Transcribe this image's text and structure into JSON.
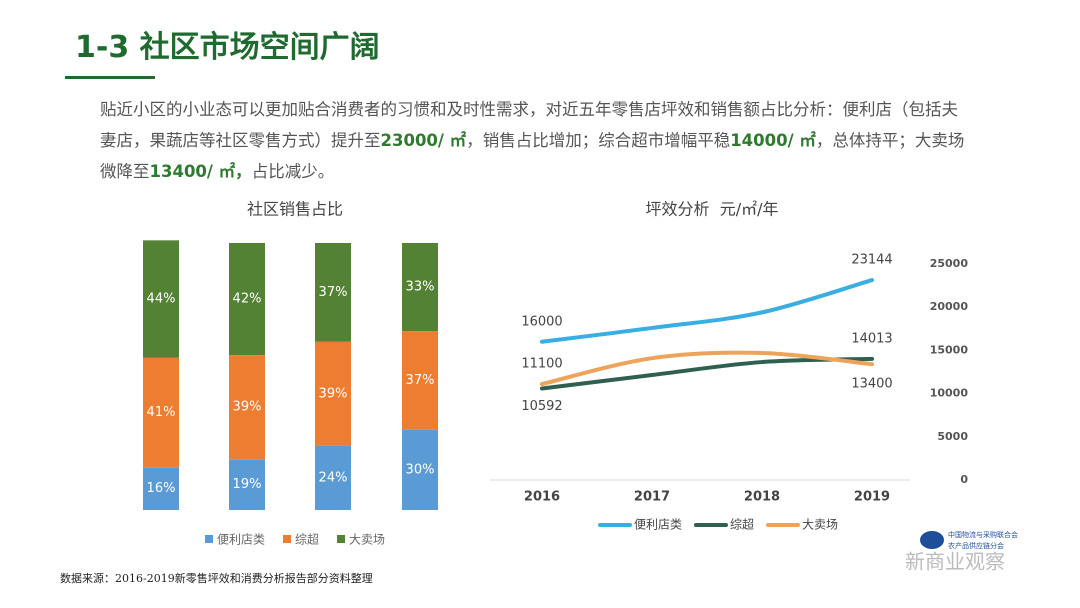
{
  "title": "1-3 社区市场空间广阔",
  "paragraph": [
    {
      "text": "贴近小区的小业态可以更加贴合消费者的习惯和及时性需求，对近五年零售店坪效和销售额占比分析：便利店（包括夫妻店，果蔬店等社区零售方式）提升至",
      "bold": false
    },
    {
      "text": "23000/ ㎡",
      "bold": true
    },
    {
      "text": "，销售占比增加；综合超市增幅平稳",
      "bold": false
    },
    {
      "text": "14000/ ㎡",
      "bold": true
    },
    {
      "text": "，总体持平；大卖场微降至",
      "bold": false
    },
    {
      "text": "13400/ ㎡，",
      "bold": true
    },
    {
      "text": "占比减少。",
      "bold": false
    }
  ],
  "source": "数据来源：2016-2019新零售坪效和消费分析报告部分资料整理",
  "logo": {
    "lines": [
      "中国物流与采购联合会",
      "农产品供应链分会"
    ]
  },
  "watermark": "新商业观察",
  "chart_data": [
    {
      "type": "stacked_bar",
      "title": "社区销售占比",
      "categories": [
        null,
        null,
        null,
        null
      ],
      "series": [
        {
          "name": "便利店类",
          "color": "#5b9bd5",
          "values": [
            16,
            19,
            24,
            30
          ],
          "value_labels": [
            "16%",
            "19%",
            "24%",
            "30%"
          ]
        },
        {
          "name": "综超",
          "color": "#ed7d31",
          "values": [
            41,
            39,
            39,
            37
          ],
          "value_labels": [
            "41%",
            "39%",
            "39%",
            "37%"
          ]
        },
        {
          "name": "大卖场",
          "color": "#548235",
          "values": [
            44,
            42,
            37,
            33
          ],
          "value_labels": [
            "44%",
            "42%",
            "37%",
            "33%"
          ]
        }
      ],
      "ylim": [
        0,
        100
      ],
      "legend": "bottom"
    },
    {
      "type": "line",
      "title": "坪效分析  元/㎡/年",
      "categories": [
        "2016",
        "2017",
        "2018",
        "2019"
      ],
      "series": [
        {
          "name": "便利店类",
          "color": "#3aaee0",
          "values": [
            16000,
            17600,
            19400,
            23144
          ]
        },
        {
          "name": "综超",
          "color": "#2f5f4f",
          "values": [
            10592,
            12150,
            13650,
            14013
          ]
        },
        {
          "name": "大卖场",
          "color": "#eda45a",
          "values": [
            11100,
            14100,
            14700,
            13400
          ]
        }
      ],
      "ylim": [
        0,
        25000
      ],
      "yticks": [
        0,
        5000,
        10000,
        15000,
        20000,
        25000
      ],
      "yaxis": "right",
      "data_labels": "ends",
      "legend": "bottom"
    }
  ]
}
